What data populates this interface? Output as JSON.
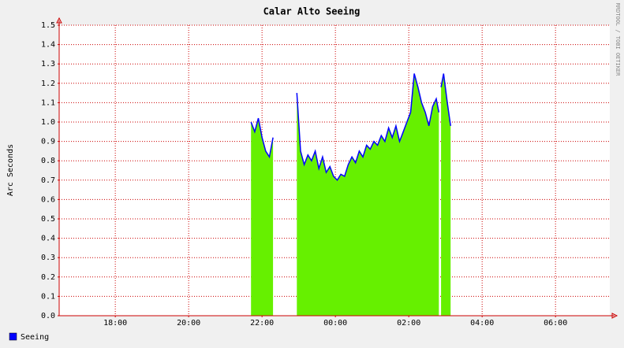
{
  "chart_data": {
    "type": "area",
    "title": "Calar Alto Seeing",
    "y_label": "Arc Seconds",
    "side_note": "RRDTOOL / TOBI OETIKER",
    "xlim": [
      16.47,
      31.48
    ],
    "xticks": [
      {
        "value": 18,
        "label": "18:00"
      },
      {
        "value": 20,
        "label": "20:00"
      },
      {
        "value": 22,
        "label": "22:00"
      },
      {
        "value": 24,
        "label": "00:00"
      },
      {
        "value": 26,
        "label": "02:00"
      },
      {
        "value": 28,
        "label": "04:00"
      },
      {
        "value": 30,
        "label": "06:00"
      }
    ],
    "ylim": [
      0,
      1.5
    ],
    "yticks": [
      {
        "value": 0,
        "label": "0.0"
      },
      0.1,
      0.2,
      0.3,
      0.4,
      0.5,
      0.6,
      0.7,
      0.8,
      0.9,
      {
        "value": 1,
        "label": "1.0"
      },
      1.1,
      1.2,
      1.3,
      1.4,
      1.5
    ],
    "grid": true,
    "legend": "bottom-left",
    "fill_color": "#66f000",
    "series": [
      {
        "name": "Seeing",
        "color": "#0000ff",
        "x": [
          21.7,
          21.8,
          21.9,
          22.0,
          22.1,
          22.2,
          22.3,
          22.6,
          22.95,
          23.05,
          23.15,
          23.25,
          23.35,
          23.45,
          23.55,
          23.65,
          23.75,
          23.85,
          23.95,
          24.05,
          24.15,
          24.25,
          24.35,
          24.45,
          24.55,
          24.65,
          24.75,
          24.85,
          24.95,
          25.05,
          25.15,
          25.25,
          25.35,
          25.45,
          25.55,
          25.65,
          25.75,
          25.85,
          25.95,
          26.05,
          26.15,
          26.25,
          26.35,
          26.45,
          26.55,
          26.65,
          26.75,
          26.82,
          26.85,
          26.88,
          26.95,
          27.05,
          27.14
        ],
        "values": [
          1.0,
          0.95,
          1.02,
          0.92,
          0.85,
          0.82,
          0.92,
          null,
          1.15,
          0.85,
          0.78,
          0.83,
          0.8,
          0.85,
          0.76,
          0.82,
          0.74,
          0.77,
          0.72,
          0.7,
          0.73,
          0.72,
          0.78,
          0.82,
          0.79,
          0.85,
          0.82,
          0.88,
          0.86,
          0.9,
          0.88,
          0.93,
          0.9,
          0.97,
          0.92,
          0.98,
          0.9,
          0.95,
          1.0,
          1.05,
          1.25,
          1.18,
          1.1,
          1.05,
          0.98,
          1.08,
          1.12,
          1.05,
          null,
          1.18,
          1.25,
          1.1,
          0.98
        ]
      }
    ]
  }
}
